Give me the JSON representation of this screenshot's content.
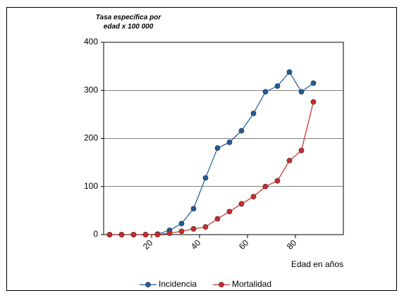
{
  "chart_data": {
    "type": "line",
    "y_label_lines": [
      "Tasa específica por",
      "edad x 100 000"
    ],
    "x_label": "Edad en años",
    "x": [
      2.5,
      7.5,
      12.5,
      17.5,
      22.5,
      27.5,
      32.5,
      37.5,
      42.5,
      47.5,
      52.5,
      57.5,
      62.5,
      67.5,
      72.5,
      77.5,
      82.5,
      87.5
    ],
    "series": [
      {
        "name": "Incidencia",
        "color": "#1f5c99",
        "values": [
          0,
          0,
          0,
          0,
          1,
          9,
          23,
          54,
          118,
          180,
          192,
          216,
          252,
          297,
          309,
          338,
          297,
          315
        ]
      },
      {
        "name": "Mortalidad",
        "color": "#cc2a2a",
        "values": [
          0,
          0,
          0,
          0,
          0,
          3,
          7,
          12,
          16,
          33,
          48,
          64,
          79,
          100,
          112,
          154,
          175,
          276
        ]
      }
    ],
    "xlim": [
      0,
      100
    ],
    "xticks": [
      20,
      40,
      60,
      80
    ],
    "ylim": [
      0,
      400
    ],
    "yticks": [
      0,
      100,
      200,
      300,
      400
    ],
    "grid": true
  }
}
